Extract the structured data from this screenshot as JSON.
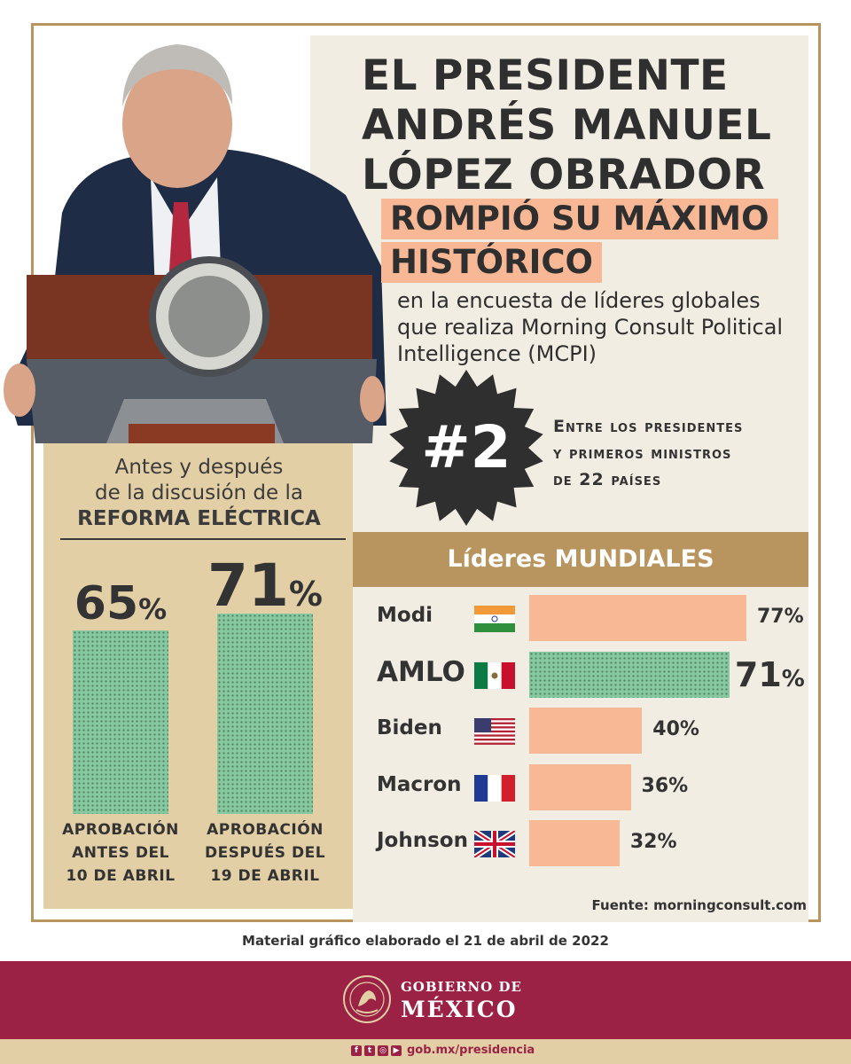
{
  "title_lines": [
    "EL PRESIDENTE",
    "ANDRÉS MANUEL",
    "LÓPEZ OBRADOR"
  ],
  "highlight_lines": [
    "ROMPIÓ SU MÁXIMO",
    "HISTÓRICO"
  ],
  "subtext": "en la encuesta de líderes globales que realiza Morning Consult Political Intelligence (MCPI)",
  "rank": {
    "badge": "#2",
    "lines": [
      "Entre los presidentes",
      "y primeros ministros",
      "de 22 países"
    ]
  },
  "left_panel": {
    "title_lines": [
      "Antes y después",
      "de la discusión de la"
    ],
    "title_bold": "REFORMA ELÉCTRICA"
  },
  "colors": {
    "gold": "#b8955e",
    "peach": "#f8b895",
    "green": "#86c9a1",
    "tan": "#e3cfa6",
    "maroon": "#9b2245"
  },
  "chart_data": [
    {
      "type": "bar",
      "title": "Antes y después de la discusión de la REFORMA ELÉCTRICA",
      "categories": [
        "APROBACIÓN ANTES DEL 10 DE ABRIL",
        "APROBACIÓN DESPUÉS DEL 19 DE ABRIL"
      ],
      "category_lines": [
        [
          "APROBACIÓN",
          "ANTES DEL",
          "10 DE ABRIL"
        ],
        [
          "APROBACIÓN",
          "DESPUÉS DEL",
          "19 DE ABRIL"
        ]
      ],
      "values": [
        65,
        71
      ],
      "value_labels": [
        "65",
        "71"
      ],
      "unit": "%",
      "ylim": [
        0,
        71
      ]
    },
    {
      "type": "bar",
      "orientation": "horizontal",
      "title": "Líderes MUNDIALES",
      "title_parts": [
        "Líderes ",
        "MUNDIALES"
      ],
      "categories": [
        "Modi",
        "AMLO",
        "Biden",
        "Macron",
        "Johnson"
      ],
      "flags": [
        "india-flag-icon",
        "mexico-flag-icon",
        "usa-flag-icon",
        "france-flag-icon",
        "uk-flag-icon"
      ],
      "values": [
        77,
        71,
        40,
        36,
        32
      ],
      "value_labels": [
        "77",
        "71",
        "40",
        "36",
        "32"
      ],
      "unit": "%",
      "highlight": "AMLO",
      "xlim": [
        0,
        77
      ]
    }
  ],
  "source": "Fuente: morningconsult.com",
  "material": "Material gráfico elaborado el 21 de abril de 2022",
  "footer": {
    "gov_line1": "GOBIERNO DE",
    "gov_line2": "MÉXICO",
    "site": "gob.mx/presidencia"
  }
}
